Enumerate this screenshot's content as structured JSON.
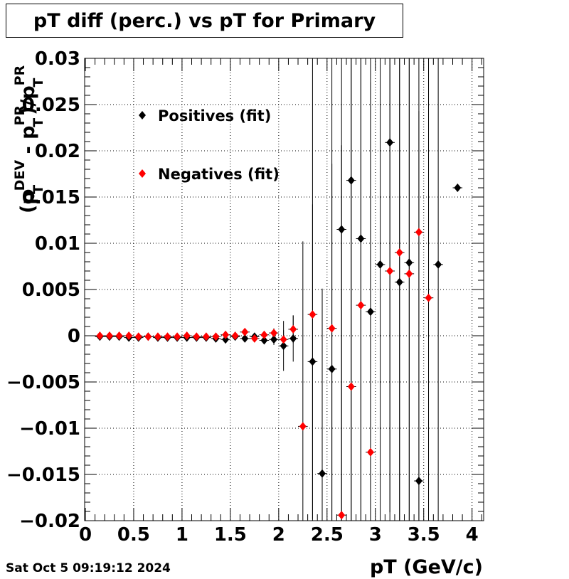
{
  "title": "pT diff (perc.) vs pT for Primary",
  "footer_date": "Sat Oct  5 09:19:12 2024",
  "colors": {
    "positives": "#000000",
    "negatives": "#ff0000"
  },
  "chart_data": {
    "type": "scatter",
    "title": "pT diff (perc.) vs pT for Primary",
    "xlabel": "pT (GeV/c)",
    "ylabel_parts": {
      "open": "(p",
      "dev_sup": "DEV",
      "t1": "T",
      "minus_p": " - p",
      "t2": "T",
      "pr_sup1": "PR",
      "close_div": ")/p",
      "t3": "T",
      "pr_sup2": "PR"
    },
    "xlim": [
      0,
      4.12
    ],
    "ylim": [
      -0.02,
      0.03
    ],
    "grid": true,
    "xticks": [
      {
        "v": 0,
        "label": "0"
      },
      {
        "v": 0.5,
        "label": "0.5"
      },
      {
        "v": 1,
        "label": "1"
      },
      {
        "v": 1.5,
        "label": "1.5"
      },
      {
        "v": 2,
        "label": "2"
      },
      {
        "v": 2.5,
        "label": "2.5"
      },
      {
        "v": 3,
        "label": "3"
      },
      {
        "v": 3.5,
        "label": "3.5"
      },
      {
        "v": 4,
        "label": "4"
      }
    ],
    "yticks": [
      {
        "v": -0.02,
        "label": "−0.02"
      },
      {
        "v": -0.015,
        "label": "−0.015"
      },
      {
        "v": -0.01,
        "label": "−0.01"
      },
      {
        "v": -0.005,
        "label": "−0.005"
      },
      {
        "v": 0,
        "label": "0"
      },
      {
        "v": 0.005,
        "label": "0.005"
      },
      {
        "v": 0.01,
        "label": "0.01"
      },
      {
        "v": 0.015,
        "label": "0.015"
      },
      {
        "v": 0.02,
        "label": "0.02"
      },
      {
        "v": 0.025,
        "label": "0.025"
      },
      {
        "v": 0.03,
        "label": "0.03"
      }
    ],
    "legend_placement": "top-left",
    "series": [
      {
        "name": "Positives (fit)",
        "color": "#000000",
        "points": [
          {
            "x": 0.15,
            "y": -0.0001,
            "err": 0.0001
          },
          {
            "x": 0.25,
            "y": -0.0001,
            "err": 0.0001
          },
          {
            "x": 0.35,
            "y": -0.0001,
            "err": 0.0001
          },
          {
            "x": 0.45,
            "y": -0.0002,
            "err": 0.0001
          },
          {
            "x": 0.55,
            "y": -0.0002,
            "err": 0.0001
          },
          {
            "x": 0.65,
            "y": -0.0001,
            "err": 0.0001
          },
          {
            "x": 0.75,
            "y": -0.0002,
            "err": 0.0001
          },
          {
            "x": 0.85,
            "y": -0.0002,
            "err": 0.0001
          },
          {
            "x": 0.95,
            "y": -0.0002,
            "err": 0.0001
          },
          {
            "x": 1.05,
            "y": -0.0002,
            "err": 0.0001
          },
          {
            "x": 1.15,
            "y": -0.0002,
            "err": 0.0001
          },
          {
            "x": 1.25,
            "y": -0.0002,
            "err": 0.0001
          },
          {
            "x": 1.35,
            "y": -0.0003,
            "err": 0.0002
          },
          {
            "x": 1.45,
            "y": -0.0004,
            "err": 0.0002
          },
          {
            "x": 1.55,
            "y": -0.0001,
            "err": 0.0003
          },
          {
            "x": 1.65,
            "y": -0.0003,
            "err": 0.0003
          },
          {
            "x": 1.75,
            "y": -0.0001,
            "err": 0.0003
          },
          {
            "x": 1.85,
            "y": -0.0005,
            "err": 0.0004
          },
          {
            "x": 1.95,
            "y": -0.0004,
            "err": 0.0006
          },
          {
            "x": 2.05,
            "y": -0.0011,
            "err": 0.0027
          },
          {
            "x": 2.15,
            "y": -0.0003,
            "err": 0.0025
          },
          {
            "x": 2.35,
            "y": -0.0028,
            "err": 0.017
          },
          {
            "x": 2.45,
            "y": -0.0149,
            "err": 0.02
          },
          {
            "x": 2.55,
            "y": -0.0036,
            "err": 0.0222
          },
          {
            "x": 2.65,
            "y": 0.0115,
            "err": 0.04
          },
          {
            "x": 2.75,
            "y": 0.0168,
            "err": 0.04
          },
          {
            "x": 2.85,
            "y": 0.0105,
            "err": 0.04
          },
          {
            "x": 2.95,
            "y": 0.0026,
            "err": 0.04
          },
          {
            "x": 3.05,
            "y": 0.0077,
            "err": 0.04
          },
          {
            "x": 3.15,
            "y": 0.0209,
            "err": 0.04
          },
          {
            "x": 3.25,
            "y": 0.0058,
            "err": 0.04
          },
          {
            "x": 3.35,
            "y": 0.0079,
            "err": 0.04
          },
          {
            "x": 3.45,
            "y": -0.0157,
            "err": 0.04
          },
          {
            "x": 3.65,
            "y": 0.0077,
            "err": 0.04
          },
          {
            "x": 3.85,
            "y": 0.016,
            "err": 0.0
          }
        ]
      },
      {
        "name": "Negatives (fit)",
        "color": "#ff0000",
        "points": [
          {
            "x": 0.15,
            "y": 0.0,
            "err": 0.0001
          },
          {
            "x": 0.25,
            "y": 0.0,
            "err": 0.0001
          },
          {
            "x": 0.35,
            "y": 0.0,
            "err": 0.0001
          },
          {
            "x": 0.45,
            "y": 0.0,
            "err": 0.0001
          },
          {
            "x": 0.55,
            "y": -0.0001,
            "err": 0.0001
          },
          {
            "x": 0.65,
            "y": -0.0001,
            "err": 0.0001
          },
          {
            "x": 0.75,
            "y": -0.0001,
            "err": 0.0001
          },
          {
            "x": 0.85,
            "y": -0.0001,
            "err": 0.0001
          },
          {
            "x": 0.95,
            "y": -0.0001,
            "err": 0.0001
          },
          {
            "x": 1.05,
            "y": 0.0,
            "err": 0.0001
          },
          {
            "x": 1.15,
            "y": -0.0001,
            "err": 0.0001
          },
          {
            "x": 1.25,
            "y": -0.0001,
            "err": 0.0001
          },
          {
            "x": 1.35,
            "y": -0.0001,
            "err": 0.0002
          },
          {
            "x": 1.45,
            "y": 0.0001,
            "err": 0.0002
          },
          {
            "x": 1.55,
            "y": 0.0,
            "err": 0.0002
          },
          {
            "x": 1.65,
            "y": 0.0004,
            "err": 0.0003
          },
          {
            "x": 1.75,
            "y": -0.0003,
            "err": 0.0003
          },
          {
            "x": 1.85,
            "y": 0.0001,
            "err": 0.0003
          },
          {
            "x": 1.95,
            "y": 0.0003,
            "err": 0.0005
          },
          {
            "x": 2.05,
            "y": -0.0004,
            "err": 0.001
          },
          {
            "x": 2.15,
            "y": 0.0007,
            "err": 0.0015
          },
          {
            "x": 2.25,
            "y": -0.0098,
            "err": 0.02
          },
          {
            "x": 2.35,
            "y": 0.0023,
            "err": 0.03
          },
          {
            "x": 2.55,
            "y": 0.0008,
            "err": 0.03
          },
          {
            "x": 2.65,
            "y": -0.0194,
            "err": 0.04
          },
          {
            "x": 2.75,
            "y": -0.0055,
            "err": 0.04
          },
          {
            "x": 2.85,
            "y": 0.0033,
            "err": 0.04
          },
          {
            "x": 2.95,
            "y": -0.0126,
            "err": 0.04
          },
          {
            "x": 3.15,
            "y": 0.007,
            "err": 0.04
          },
          {
            "x": 3.25,
            "y": 0.009,
            "err": 0.04
          },
          {
            "x": 3.35,
            "y": 0.0067,
            "err": 0.04
          },
          {
            "x": 3.45,
            "y": 0.0112,
            "err": 0.04
          },
          {
            "x": 3.55,
            "y": 0.0041,
            "err": 0.04
          }
        ]
      }
    ]
  }
}
